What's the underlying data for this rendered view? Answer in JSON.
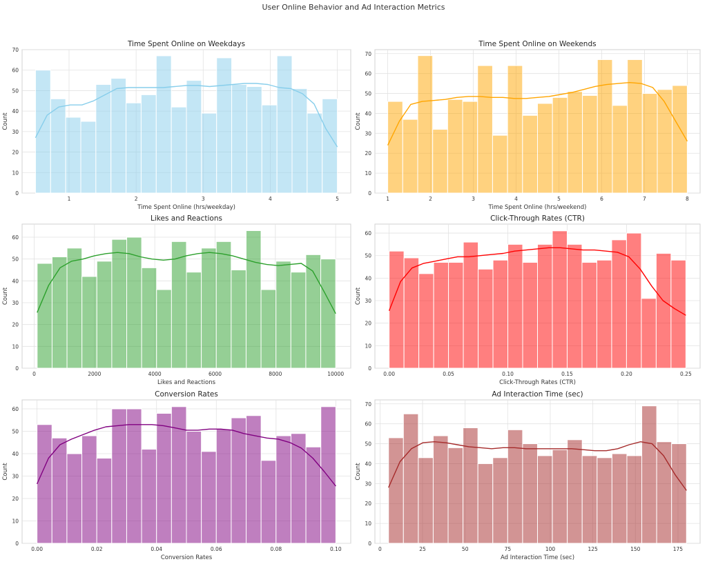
{
  "figure": {
    "title": "User Online Behavior and Ad Interaction Metrics"
  },
  "chart_data": [
    {
      "type": "histogram",
      "title": "Time Spent Online on Weekdays",
      "xlabel": "Time Spent Online (hrs/weekday)",
      "ylabel": "Count",
      "color": "#87ceeb",
      "bin_start": 0.5,
      "bin_end": 5.0,
      "counts": [
        60,
        46,
        37,
        35,
        53,
        56,
        44,
        48,
        67,
        42,
        55,
        39,
        66,
        53,
        52,
        43,
        67,
        51,
        39,
        46
      ],
      "kde": [
        27,
        38,
        42,
        43,
        43,
        45,
        48,
        51,
        51.5,
        51.5,
        51.5,
        51.5,
        52,
        52.5,
        52.5,
        52,
        52.5,
        53,
        53.5,
        53.5,
        53,
        51.5,
        51,
        48.5,
        43.5,
        31.5,
        22.5
      ],
      "xlim": [
        0.3,
        5.2
      ],
      "ylim": [
        0,
        70
      ],
      "xticks": [
        1,
        2,
        3,
        4,
        5
      ],
      "yticks": [
        0,
        10,
        20,
        30,
        40,
        50,
        60,
        70
      ]
    },
    {
      "type": "histogram",
      "title": "Time Spent Online on Weekends",
      "xlabel": "Time Spent Online (hrs/weekend)",
      "ylabel": "Count",
      "color": "#ffa500",
      "bin_start": 1.0,
      "bin_end": 8.0,
      "counts": [
        46,
        37,
        69,
        32,
        47,
        46,
        64,
        29,
        64,
        39,
        45,
        48,
        51,
        49,
        67,
        44,
        67,
        50,
        52,
        54
      ],
      "kde": [
        24,
        36,
        44.5,
        46,
        46.5,
        47,
        48,
        48.5,
        48.5,
        48,
        48,
        47.5,
        47.5,
        48,
        48.5,
        49.5,
        50.5,
        52,
        53.5,
        54.5,
        55,
        55.5,
        55,
        53,
        46,
        36,
        26
      ],
      "xlim": [
        0.7,
        8.3
      ],
      "ylim": [
        0,
        72
      ],
      "xticks": [
        1,
        2,
        3,
        4,
        5,
        6,
        7,
        8
      ],
      "yticks": [
        0,
        10,
        20,
        30,
        40,
        50,
        60,
        70
      ]
    },
    {
      "type": "histogram",
      "title": "Likes and Reactions",
      "xlabel": "Likes and Reactions",
      "ylabel": "Count",
      "color": "#2ca02c",
      "bin_start": 100,
      "bin_end": 10000,
      "counts": [
        48,
        51,
        55,
        42,
        49,
        59,
        60,
        46,
        36,
        58,
        44,
        55,
        58,
        45,
        63,
        36,
        49,
        44,
        52,
        50
      ],
      "kde": [
        25.5,
        38,
        46,
        49,
        50,
        51.5,
        52.5,
        53,
        52.5,
        51,
        50,
        49.5,
        50,
        51.5,
        52.5,
        53,
        52.5,
        51.5,
        50,
        48.5,
        47.5,
        47,
        47.5,
        48,
        44.5,
        35,
        25
      ],
      "xlim": [
        -400,
        10500
      ],
      "ylim": [
        0,
        66
      ],
      "xticks": [
        0,
        2000,
        4000,
        6000,
        8000,
        10000
      ],
      "yticks": [
        0,
        10,
        20,
        30,
        40,
        50,
        60
      ]
    },
    {
      "type": "histogram",
      "title": "Click-Through Rates (CTR)",
      "xlabel": "Click-Through Rates (CTR)",
      "ylabel": "Count",
      "color": "#ff0000",
      "bin_start": 0.0,
      "bin_end": 0.25,
      "counts": [
        52,
        49,
        42,
        47,
        47,
        56,
        44,
        48,
        55,
        47,
        55,
        61,
        55,
        47,
        48,
        57,
        60,
        31,
        51,
        48
      ],
      "kde": [
        25.5,
        38.5,
        44.5,
        46.5,
        47.5,
        48.5,
        49.5,
        49.5,
        50,
        50.5,
        51,
        52,
        52.5,
        53,
        53.5,
        53.5,
        53,
        52.5,
        52.5,
        52,
        51.5,
        49.5,
        44,
        36.5,
        30,
        26.5,
        23.5
      ],
      "xlim": [
        -0.012,
        0.262
      ],
      "ylim": [
        0,
        64
      ],
      "xticks": [
        0.0,
        0.05,
        0.1,
        0.15,
        0.2,
        0.25
      ],
      "xtick_labels": [
        "0.00",
        "0.05",
        "0.10",
        "0.15",
        "0.20",
        "0.25"
      ],
      "yticks": [
        0,
        10,
        20,
        30,
        40,
        50,
        60
      ]
    },
    {
      "type": "histogram",
      "title": "Conversion Rates",
      "xlabel": "Conversion Rates",
      "ylabel": "Count",
      "color": "#800080",
      "bin_start": 0.0,
      "bin_end": 0.1,
      "counts": [
        53,
        47,
        40,
        48,
        38,
        60,
        60,
        42,
        58,
        61,
        50,
        41,
        51,
        56,
        57,
        37,
        48,
        49,
        43,
        61
      ],
      "kde": [
        26.5,
        38,
        44,
        46.5,
        48.5,
        50.5,
        52,
        52.5,
        53,
        53,
        53,
        52.5,
        51.5,
        50.5,
        50.5,
        51,
        51,
        50.5,
        49,
        48,
        47,
        46.5,
        45,
        42.5,
        38,
        32,
        25.5
      ],
      "xlim": [
        -0.005,
        0.105
      ],
      "ylim": [
        0,
        64
      ],
      "xticks": [
        0.0,
        0.02,
        0.04,
        0.06,
        0.08,
        0.1
      ],
      "xtick_labels": [
        "0.00",
        "0.02",
        "0.04",
        "0.06",
        "0.08",
        "0.10"
      ],
      "yticks": [
        0,
        10,
        20,
        30,
        40,
        50,
        60
      ]
    },
    {
      "type": "histogram",
      "title": "Ad Interaction Time (sec)",
      "xlabel": "Ad Interaction Time (sec)",
      "ylabel": "Count",
      "color": "#a52a2a",
      "bin_start": 5,
      "bin_end": 180,
      "counts": [
        53,
        65,
        43,
        54,
        48,
        58,
        40,
        43,
        57,
        50,
        44,
        47,
        52,
        44,
        43,
        45,
        44,
        69,
        51,
        50
      ],
      "kde": [
        28,
        41,
        47.5,
        50.5,
        51,
        50.5,
        49.5,
        48.5,
        48,
        47.5,
        48,
        48,
        47.5,
        47.5,
        47.5,
        47.5,
        47.5,
        47,
        46.5,
        46.5,
        47.5,
        49.5,
        51,
        50,
        44,
        34.5,
        26.5
      ],
      "xlim": [
        -3,
        188
      ],
      "ylim": [
        0,
        72
      ],
      "xticks": [
        0,
        25,
        50,
        75,
        100,
        125,
        150,
        175
      ],
      "yticks": [
        0,
        10,
        20,
        30,
        40,
        50,
        60,
        70
      ]
    }
  ]
}
